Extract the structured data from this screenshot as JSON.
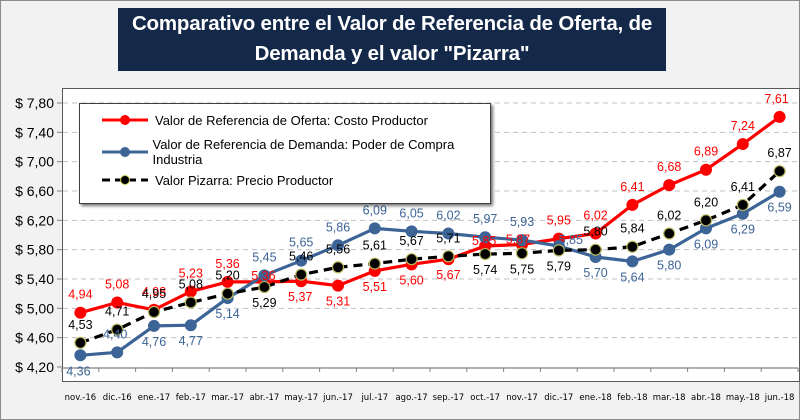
{
  "title": {
    "line1": "Comparativo entre el Valor de Referencia de Oferta, de",
    "line2": "Demanda y el valor \"Pizarra\""
  },
  "colors": {
    "oferta": "#ff0000",
    "demanda": "#3d6496",
    "pizarra": "#000000",
    "title_bg": "#14294a"
  },
  "chart_data": {
    "type": "line",
    "title": "Comparativo entre el Valor de Referencia de Oferta, de Demanda y el valor \"Pizarra\"",
    "xlabel": "",
    "ylabel": "",
    "ylim": [
      4.2,
      7.8
    ],
    "yticks": [
      4.2,
      4.6,
      5.0,
      5.4,
      5.8,
      6.2,
      6.6,
      7.0,
      7.4,
      7.8
    ],
    "ytick_labels": [
      "$ 4,20",
      "$ 4,60",
      "$ 5,00",
      "$ 5,40",
      "$ 5,80",
      "$ 6,20",
      "$ 6,60",
      "$ 7,00",
      "$ 7,40",
      "$ 7,80"
    ],
    "grid": "horizontal-dashed",
    "legend_position": "top-left",
    "categories": [
      "nov.-16",
      "dic.-16",
      "ene.-17",
      "feb.-17",
      "mar.-17",
      "abr.-17",
      "may.-17",
      "jun.-17",
      "jul.-17",
      "ago.-17",
      "sep.-17",
      "oct.-17",
      "nov.-17",
      "dic.-17",
      "ene.-18",
      "feb.-18",
      "mar.-18",
      "abr.-18",
      "may.-18",
      "jun.-18"
    ],
    "series": [
      {
        "name": "Valor de Referencia de Oferta: Costo Productor",
        "key": "oferta",
        "style": "solid",
        "values": [
          4.94,
          5.08,
          4.98,
          5.23,
          5.36,
          5.36,
          5.37,
          5.31,
          5.51,
          5.6,
          5.67,
          5.85,
          5.87,
          5.95,
          6.02,
          6.41,
          6.68,
          6.89,
          7.24,
          7.61
        ],
        "labels": [
          "4,94",
          "5,08",
          "4,98",
          "5,23",
          "5,36",
          "5,36",
          "5,37",
          "5,31",
          "5,51",
          "5,60",
          "5,67",
          "5,85",
          "5,87",
          "5,95",
          "6,02",
          "6,41",
          "6,68",
          "6,89",
          "7,24",
          "7,61"
        ]
      },
      {
        "name": "Valor de Referencia de Demanda: Poder de Compra Industria",
        "key": "demanda",
        "style": "solid",
        "values": [
          4.36,
          4.4,
          4.76,
          4.77,
          5.14,
          5.45,
          5.65,
          5.86,
          6.09,
          6.05,
          6.02,
          5.97,
          5.93,
          5.85,
          5.7,
          5.64,
          5.8,
          6.09,
          6.29,
          6.59
        ],
        "labels": [
          "4,36",
          "4,40",
          "4,76",
          "4,77",
          "5,14",
          "5,45",
          "5,65",
          "5,86",
          "6,09",
          "6,05",
          "6,02",
          "5,97",
          "5,93",
          "5,85",
          "5,70",
          "5,64",
          "5,80",
          "6,09",
          "6,29",
          "6,59"
        ]
      },
      {
        "name": "Valor Pizarra: Precio Productor",
        "key": "pizarra",
        "style": "dashed",
        "values": [
          4.53,
          4.71,
          4.95,
          5.08,
          5.2,
          5.29,
          5.46,
          5.56,
          5.61,
          5.67,
          5.71,
          5.74,
          5.75,
          5.79,
          5.8,
          5.84,
          6.02,
          6.2,
          6.41,
          6.87
        ],
        "labels": [
          "4,53",
          "4,71",
          "4,95",
          "5,08",
          "5,20",
          "5,29",
          "5,46",
          "5,56",
          "5,61",
          "5,67",
          "5,71",
          "5,74",
          "5,75",
          "5,79",
          "5,80",
          "5,84",
          "6,02",
          "6,20",
          "6,41",
          "6,87"
        ]
      }
    ]
  }
}
